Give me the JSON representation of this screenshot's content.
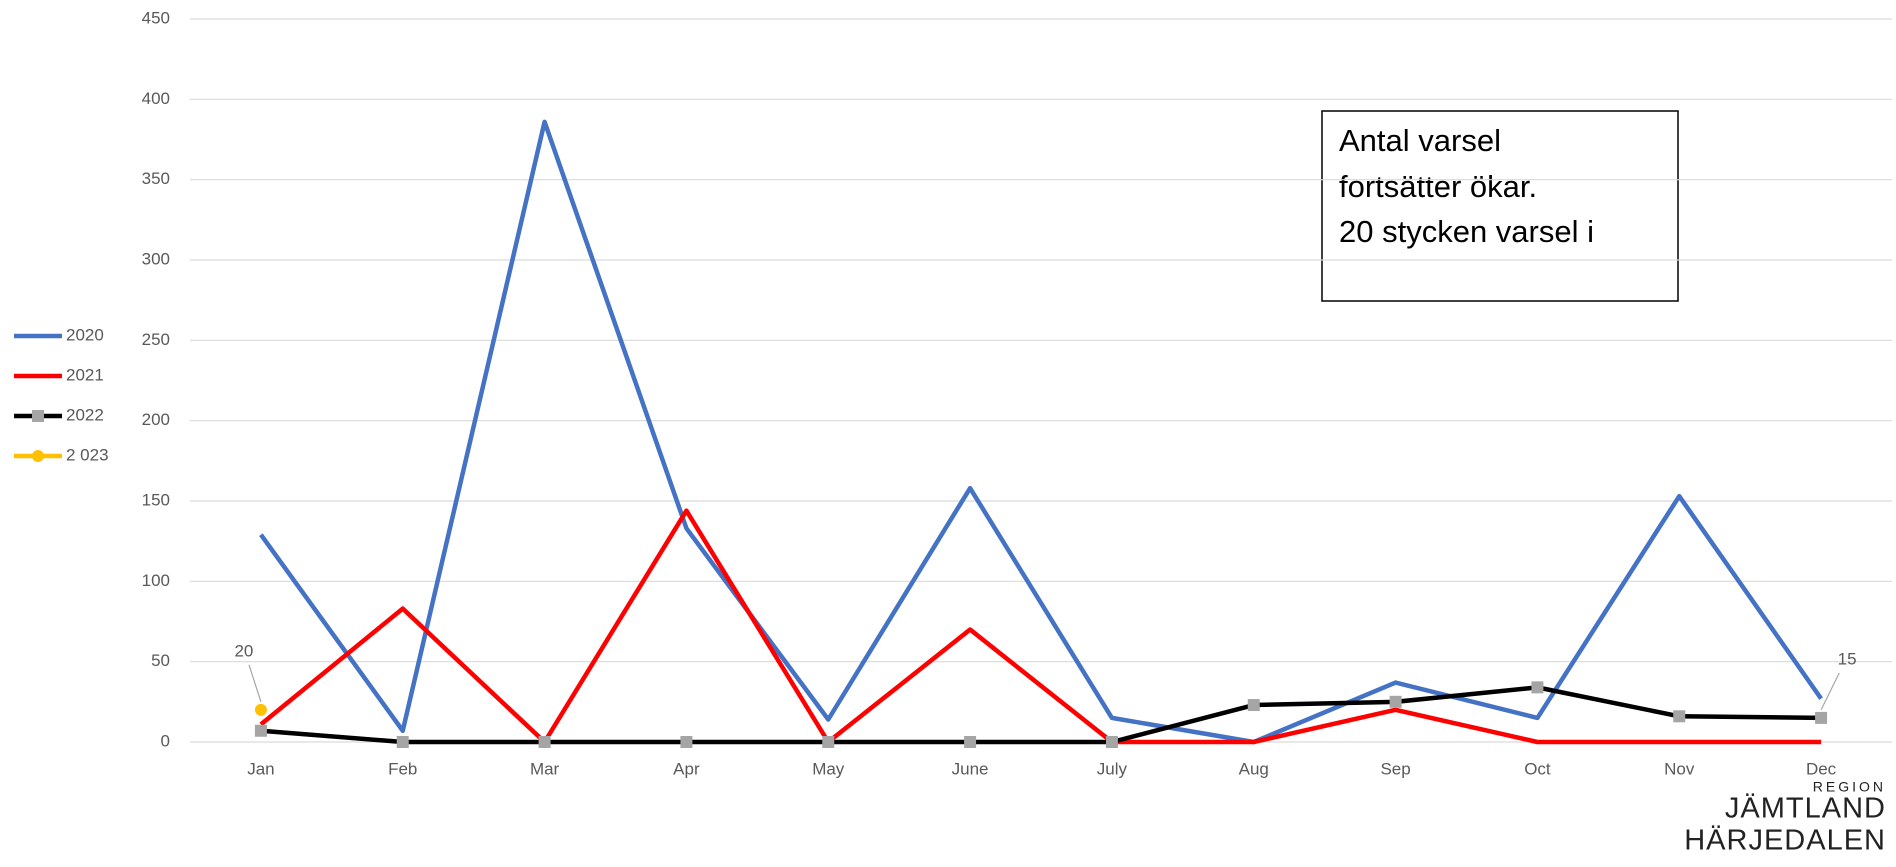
{
  "chart_data": {
    "type": "line",
    "categories": [
      "Jan",
      "Feb",
      "Mar",
      "Apr",
      "May",
      "June",
      "July",
      "Aug",
      "Sep",
      "Oct",
      "Nov",
      "Dec"
    ],
    "series": [
      {
        "name": "2020",
        "color": "#4472c4",
        "marker": "none",
        "values": [
          129,
          7,
          386,
          133,
          14,
          158,
          15,
          0,
          37,
          15,
          153,
          27
        ]
      },
      {
        "name": "2021",
        "color": "#ff0000",
        "marker": "none",
        "values": [
          11,
          83,
          0,
          144,
          0,
          70,
          0,
          0,
          20,
          0,
          0,
          0
        ]
      },
      {
        "name": "2022",
        "color": "#000000",
        "marker": "square",
        "marker_color": "#a5a5a5",
        "label_index": 11,
        "values": [
          7,
          0,
          0,
          0,
          0,
          0,
          0,
          23,
          25,
          34,
          16,
          15
        ]
      },
      {
        "name": "2 023",
        "color": "#ffc000",
        "marker": "circle",
        "marker_color": "#ffc000",
        "label_index": 0,
        "values": [
          20,
          null,
          null,
          null,
          null,
          null,
          null,
          null,
          null,
          null,
          null,
          null
        ]
      }
    ],
    "ylim": [
      0,
      450
    ],
    "yticks": [
      0,
      50,
      100,
      150,
      200,
      250,
      300,
      350,
      400,
      450
    ],
    "grid": true,
    "legend": "left",
    "annotation": [
      "Antal varsel",
      "fortsätter ökar.",
      "20 stycken varsel i"
    ]
  },
  "logo": [
    "REGION",
    "JÄMTLAND",
    "HÄRJEDALEN"
  ]
}
